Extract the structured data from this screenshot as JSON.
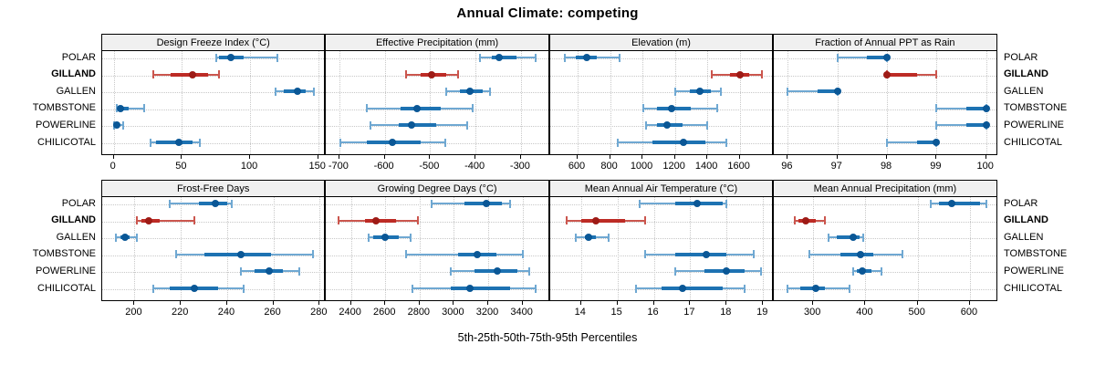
{
  "title": "Annual Climate: competing",
  "caption": "5th-25th-50th-75th-95th Percentiles",
  "highlighted_site": "GILLAND",
  "colors": {
    "blue_whisker": "#6fa8d2",
    "blue_band": "#1d72b2",
    "blue_dot": "#0a5796",
    "red_whisker": "#cb564e",
    "red_band": "#bd2b25",
    "red_dot": "#9e1b16",
    "grid": "#c8c8c8",
    "strip_bg": "#f0f0f0",
    "border": "#000000"
  },
  "chart_data": {
    "type": "dotplot",
    "note": "percentile dotplot; whisker = 5th-95th, thick band = 25th-75th, dot = 50th",
    "percentiles": [
      "5th",
      "25th",
      "50th",
      "75th",
      "95th"
    ],
    "group_order": [
      "POLAR",
      "GILLAND",
      "GALLEN",
      "TOMBSTONE",
      "POWERLINE",
      "CHILICOTAL"
    ],
    "panels": [
      {
        "title": "Design Freeze Index (°C)",
        "xlim": [
          -8.5,
          154.5
        ],
        "ticks": [
          0,
          50,
          100,
          150
        ],
        "values": [
          [
            75,
            77,
            86,
            95,
            120
          ],
          [
            29,
            42,
            58,
            69,
            77
          ],
          [
            119,
            125,
            135,
            141,
            147
          ],
          [
            2,
            3,
            5,
            11,
            22
          ],
          [
            0,
            1,
            2,
            4,
            7
          ],
          [
            27,
            31,
            48,
            58,
            63
          ]
        ]
      },
      {
        "title": "Effective Precipitation (mm)",
        "xlim": [
          -729,
          -240
        ],
        "ticks": [
          -700,
          -600,
          -500,
          -400,
          -300
        ],
        "values": [
          [
            -390,
            -365,
            -348,
            -310,
            -268
          ],
          [
            -553,
            -520,
            -496,
            -465,
            -439
          ],
          [
            -464,
            -435,
            -412,
            -385,
            -369
          ],
          [
            -639,
            -565,
            -528,
            -477,
            -406
          ],
          [
            -631,
            -570,
            -541,
            -487,
            -419
          ],
          [
            -697,
            -640,
            -584,
            -520,
            -467
          ]
        ]
      },
      {
        "title": "Elevation (m)",
        "xlim": [
          430,
          1800
        ],
        "ticks": [
          600,
          800,
          1000,
          1200,
          1400,
          1600
        ],
        "values": [
          [
            520,
            590,
            655,
            720,
            860
          ],
          [
            1430,
            1540,
            1600,
            1660,
            1735
          ],
          [
            1200,
            1290,
            1355,
            1420,
            1485
          ],
          [
            1005,
            1090,
            1180,
            1300,
            1460
          ],
          [
            1020,
            1090,
            1150,
            1250,
            1400
          ],
          [
            850,
            1060,
            1255,
            1390,
            1520
          ]
        ]
      },
      {
        "title": "Fraction of Annual PPT as Rain",
        "xlim": [
          95.72,
          100.2
        ],
        "ticks": [
          96,
          97,
          98,
          99,
          100
        ],
        "values": [
          [
            97,
            97.6,
            98,
            98,
            98
          ],
          [
            98,
            98,
            98,
            98.6,
            99
          ],
          [
            96,
            96.6,
            97,
            97,
            97
          ],
          [
            99,
            99.6,
            100,
            100,
            100
          ],
          [
            99,
            99.6,
            100,
            100,
            100
          ],
          [
            98,
            98.6,
            99,
            99,
            99
          ]
        ]
      },
      {
        "title": "Frost-Free Days",
        "xlim": [
          186,
          282
        ],
        "ticks": [
          200,
          220,
          240,
          260,
          280
        ],
        "values": [
          [
            215,
            228,
            235,
            240,
            242
          ],
          [
            201,
            203,
            206,
            211,
            226
          ],
          [
            192,
            194,
            196,
            198,
            201
          ],
          [
            218,
            230,
            246,
            259,
            277
          ],
          [
            246,
            252,
            258,
            264,
            271
          ],
          [
            208,
            215,
            226,
            236,
            247
          ]
        ]
      },
      {
        "title": "Growing Degree Days (°C)",
        "xlim": [
          2255,
          3550
        ],
        "ticks": [
          2400,
          2600,
          2800,
          3000,
          3200,
          3400
        ],
        "values": [
          [
            2870,
            3060,
            3190,
            3280,
            3330
          ],
          [
            2325,
            2480,
            2545,
            2660,
            2790
          ],
          [
            2505,
            2530,
            2600,
            2680,
            2750
          ],
          [
            2720,
            3025,
            3135,
            3250,
            3400
          ],
          [
            2980,
            3120,
            3255,
            3370,
            3440
          ],
          [
            2760,
            2980,
            3095,
            3330,
            3475
          ]
        ]
      },
      {
        "title": "Mean Annual Air Temperature (°C)",
        "xlim": [
          13.15,
          19.25
        ],
        "ticks": [
          14,
          15,
          16,
          17,
          18,
          19
        ],
        "values": [
          [
            15.6,
            16.6,
            17.2,
            17.9,
            18.0
          ],
          [
            13.6,
            14.0,
            14.4,
            15.2,
            15.75
          ],
          [
            13.85,
            14.1,
            14.2,
            14.4,
            14.75
          ],
          [
            15.75,
            16.6,
            17.45,
            18.0,
            18.75
          ],
          [
            16.6,
            17.4,
            18.0,
            18.5,
            18.95
          ],
          [
            15.5,
            16.2,
            16.8,
            17.9,
            18.5
          ]
        ]
      },
      {
        "title": "Mean Annual Precipitation (mm)",
        "xlim": [
          225,
          650
        ],
        "ticks": [
          300,
          400,
          500,
          600
        ],
        "values": [
          [
            525,
            540,
            565,
            620,
            632
          ],
          [
            265,
            272,
            286,
            305,
            322
          ],
          [
            330,
            345,
            376,
            388,
            396
          ],
          [
            293,
            352,
            390,
            415,
            470
          ],
          [
            376,
            384,
            394,
            412,
            431
          ],
          [
            250,
            275,
            305,
            322,
            369
          ]
        ]
      }
    ]
  }
}
